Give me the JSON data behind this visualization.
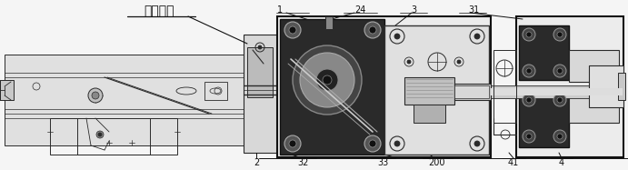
{
  "bg_color": "#ffffff",
  "line_color": "#2a2a2a",
  "gray_fill": "#d4d4d4",
  "light_fill": "#e8e8e8",
  "dark_fill": "#1e1e1e",
  "mid_fill": "#a0a0a0",
  "title_text": "枪件整体",
  "figsize": [
    6.91,
    1.87
  ],
  "dpi": 100
}
